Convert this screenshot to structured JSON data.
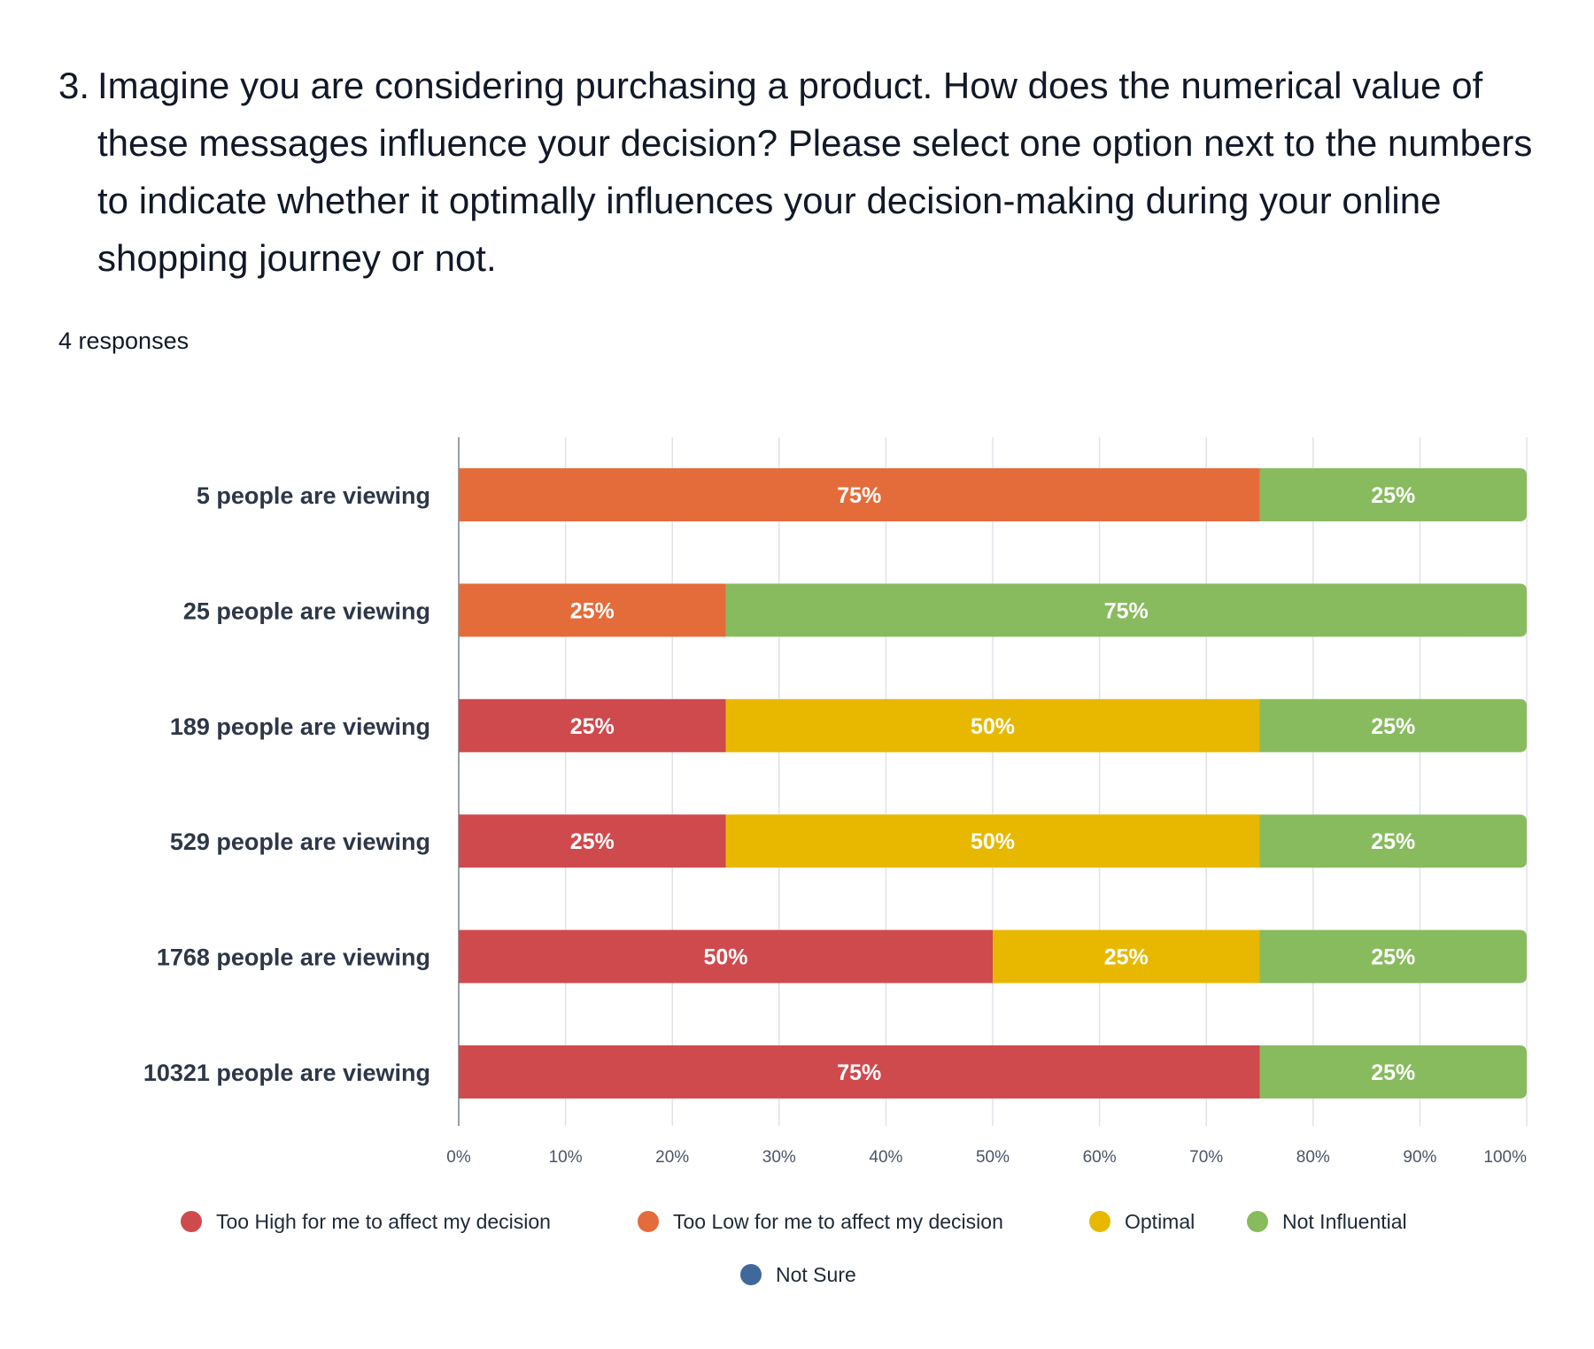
{
  "question": {
    "number": "3.",
    "text": "Imagine you are considering purchasing a product. How does the numerical value of these messages influence your decision? Please select one option next to the numbers to indicate whether it optimally influences your decision-making during your online shopping journey or not.",
    "responses": "4 responses"
  },
  "chart_data": {
    "type": "bar",
    "orientation": "horizontal",
    "stacked": true,
    "categories": [
      "5 people are viewing",
      "25 people are viewing",
      "189 people are viewing",
      "529 people are viewing",
      "1768 people are viewing",
      "10321 people are viewing"
    ],
    "series": [
      {
        "name": "Too High for me to affect my decision",
        "color": "#cf4a4d",
        "values": [
          0,
          0,
          25,
          25,
          50,
          75
        ]
      },
      {
        "name": "Too Low for me to affect my decision",
        "color": "#e46c3a",
        "values": [
          75,
          25,
          0,
          0,
          0,
          0
        ]
      },
      {
        "name": "Optimal",
        "color": "#e8b800",
        "values": [
          0,
          0,
          50,
          50,
          25,
          0
        ]
      },
      {
        "name": "Not Influential",
        "color": "#88bb5e",
        "values": [
          25,
          75,
          25,
          25,
          25,
          25
        ]
      },
      {
        "name": "Not Sure",
        "color": "#41689a",
        "values": [
          0,
          0,
          0,
          0,
          0,
          0
        ]
      }
    ],
    "xlim": [
      0,
      100
    ],
    "x_ticks": [
      "0%",
      "10%",
      "20%",
      "30%",
      "40%",
      "50%",
      "60%",
      "70%",
      "80%",
      "90%",
      "100%"
    ],
    "value_suffix": "%",
    "grid": true,
    "legend_position": "bottom"
  }
}
